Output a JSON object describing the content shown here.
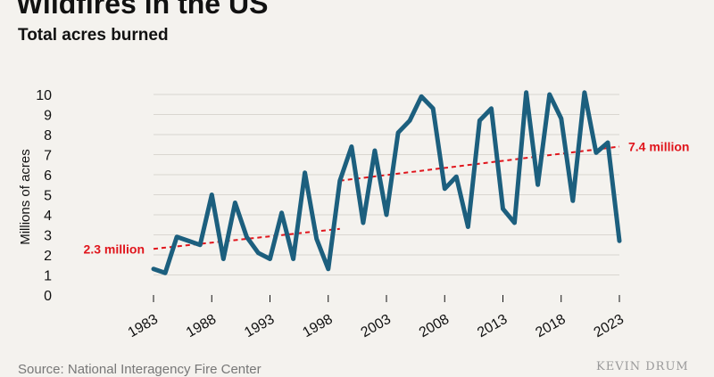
{
  "chart_data": {
    "type": "line",
    "title": "Wildfires in the US",
    "subtitle": "Total acres burned",
    "ylabel": "Millions of acres",
    "xlabel": "",
    "ylim": [
      0,
      10
    ],
    "yticks": [
      0,
      1,
      2,
      3,
      4,
      5,
      6,
      7,
      8,
      9,
      10
    ],
    "xlim": [
      1983,
      2023
    ],
    "xticks": [
      1983,
      1988,
      1993,
      1998,
      2003,
      2008,
      2013,
      2018,
      2023
    ],
    "grid": true,
    "series": [
      {
        "name": "Total acres burned",
        "color": "#1c5f7e",
        "x": [
          1983,
          1984,
          1985,
          1986,
          1987,
          1988,
          1989,
          1990,
          1991,
          1992,
          1993,
          1994,
          1995,
          1996,
          1997,
          1998,
          1999,
          2000,
          2001,
          2002,
          2003,
          2004,
          2005,
          2006,
          2007,
          2008,
          2009,
          2010,
          2011,
          2012,
          2013,
          2014,
          2015,
          2016,
          2017,
          2018,
          2019,
          2020,
          2021,
          2022,
          2023
        ],
        "values": [
          1.3,
          1.1,
          2.9,
          2.7,
          2.5,
          5.0,
          1.8,
          4.6,
          2.9,
          2.1,
          1.8,
          4.1,
          1.8,
          6.1,
          2.8,
          1.3,
          5.7,
          7.4,
          3.6,
          7.2,
          4.0,
          8.1,
          8.7,
          9.9,
          9.3,
          5.3,
          5.9,
          3.4,
          8.7,
          9.3,
          4.3,
          3.6,
          10.1,
          5.5,
          10.0,
          8.8,
          4.7,
          10.1,
          7.1,
          7.6,
          2.7
        ]
      }
    ],
    "trendlines": [
      {
        "label": "2.3 million",
        "x": [
          1983,
          1999
        ],
        "values": [
          2.3,
          3.3
        ],
        "color": "#e0151c"
      },
      {
        "label": "7.4 million",
        "x": [
          1999,
          2023
        ],
        "values": [
          5.7,
          7.4
        ],
        "color": "#e0151c"
      }
    ]
  },
  "footer": {
    "source": "Source: National Interagency Fire Center",
    "watermark": "KEVIN DRUM"
  }
}
